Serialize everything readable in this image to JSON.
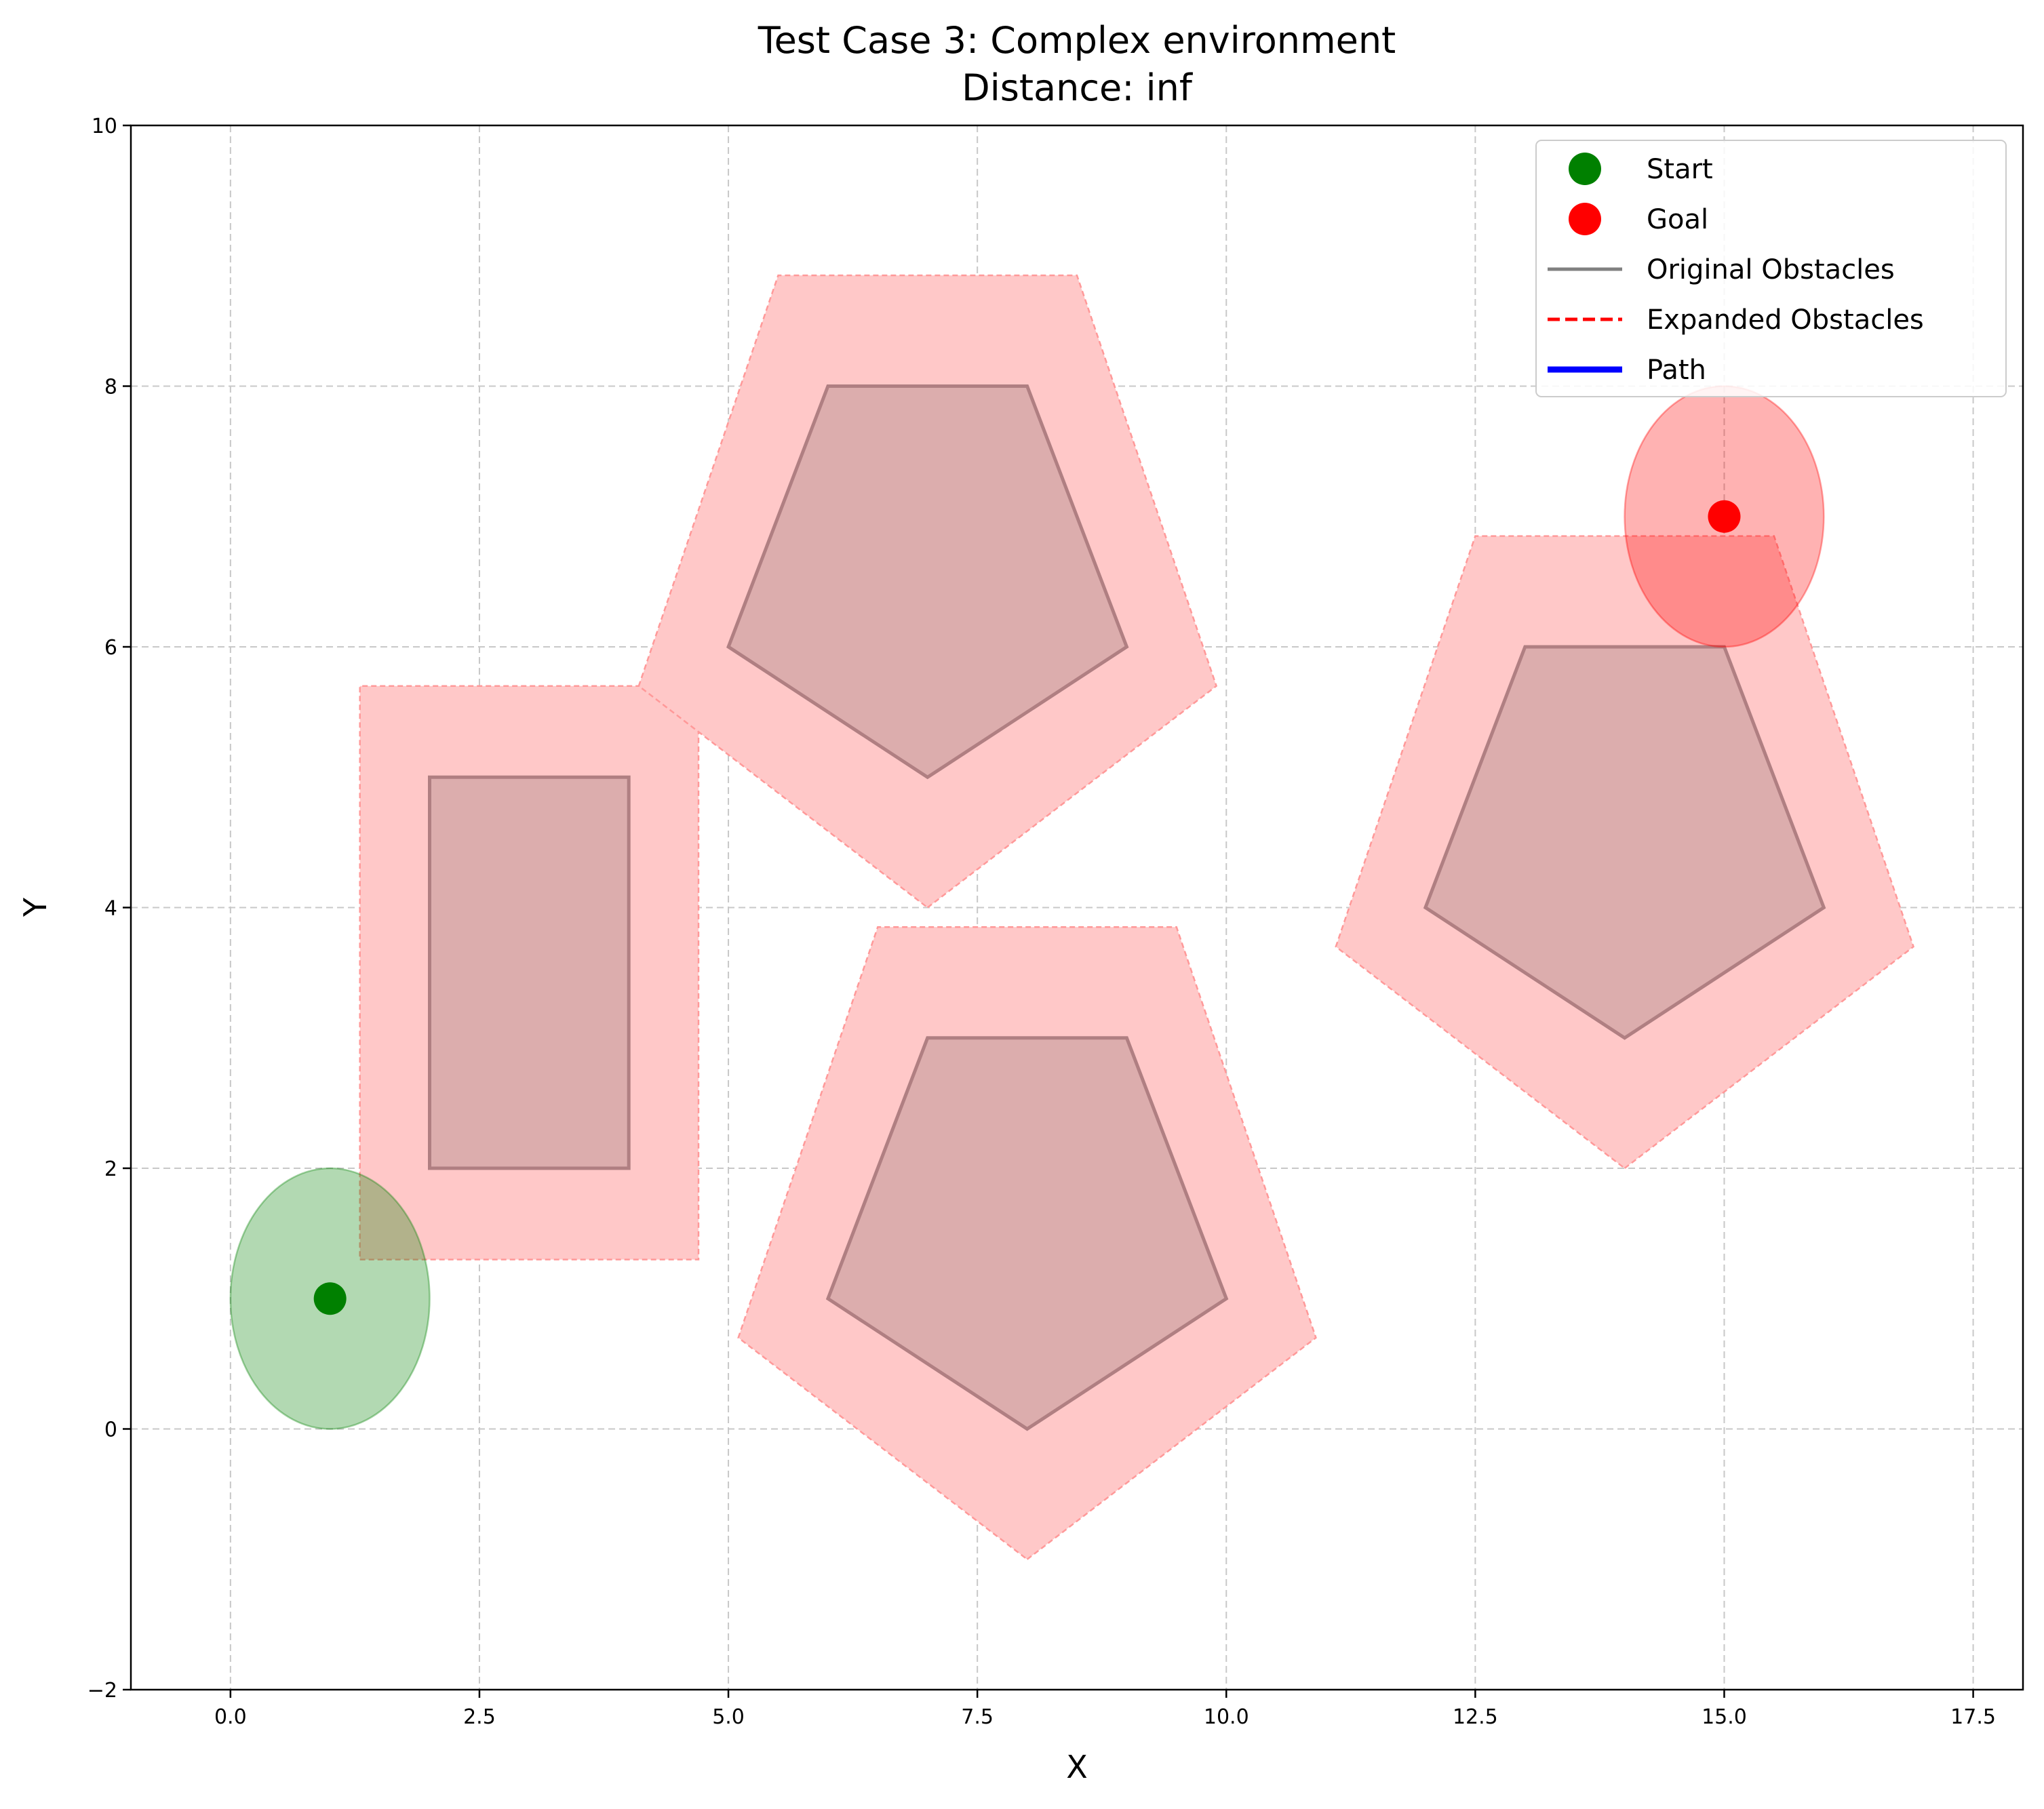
{
  "chart_data": {
    "type": "scatter",
    "title": "Test Case 3: Complex environment",
    "subtitle": "Distance: inf",
    "xlabel": "X",
    "ylabel": "Y",
    "xlim": [
      -1,
      18
    ],
    "ylim": [
      -2,
      10
    ],
    "x_ticks": [
      0.0,
      2.5,
      5.0,
      7.5,
      10.0,
      12.5,
      15.0,
      17.5
    ],
    "x_tick_labels": [
      "0.0",
      "2.5",
      "5.0",
      "7.5",
      "10.0",
      "12.5",
      "15.0",
      "17.5"
    ],
    "y_ticks": [
      -2,
      0,
      2,
      4,
      6,
      8,
      10
    ],
    "y_tick_labels": [
      "−2",
      "0",
      "2",
      "4",
      "6",
      "8",
      "10"
    ],
    "grid": true,
    "legend_position": "top-right",
    "legend": [
      {
        "label": "Start",
        "kind": "marker",
        "color": "#008000"
      },
      {
        "label": "Goal",
        "kind": "marker",
        "color": "#ff0000"
      },
      {
        "label": "Original Obstacles",
        "kind": "line",
        "color": "#808080"
      },
      {
        "label": "Expanded Obstacles",
        "kind": "dashed-line",
        "color": "#ff0000"
      },
      {
        "label": "Path",
        "kind": "thick-line",
        "color": "#0000ff"
      }
    ],
    "start": {
      "x": 1,
      "y": 1,
      "radius": 1,
      "color": "#008000"
    },
    "goal": {
      "x": 15,
      "y": 7,
      "radius": 1,
      "color": "#ff0000"
    },
    "original_obstacles": [
      [
        [
          2,
          2
        ],
        [
          4,
          2
        ],
        [
          4,
          5
        ],
        [
          2,
          5
        ]
      ],
      [
        [
          7,
          5
        ],
        [
          9,
          6
        ],
        [
          8,
          8
        ],
        [
          6,
          8
        ],
        [
          5,
          6
        ]
      ],
      [
        [
          8,
          0
        ],
        [
          10,
          1
        ],
        [
          9,
          3
        ],
        [
          7,
          3
        ],
        [
          6,
          1
        ]
      ],
      [
        [
          14,
          3
        ],
        [
          16,
          4
        ],
        [
          15,
          6
        ],
        [
          13,
          6
        ],
        [
          12,
          4
        ]
      ]
    ],
    "expanded_obstacles": [
      [
        [
          1.3,
          1.3
        ],
        [
          4.7,
          1.3
        ],
        [
          4.7,
          5.7
        ],
        [
          1.3,
          5.7
        ]
      ],
      [
        [
          7,
          4
        ],
        [
          9.9,
          5.7
        ],
        [
          8.5,
          8.85
        ],
        [
          5.5,
          8.85
        ],
        [
          4.1,
          5.7
        ]
      ],
      [
        [
          8,
          -1
        ],
        [
          10.9,
          0.7
        ],
        [
          9.5,
          3.85
        ],
        [
          6.5,
          3.85
        ],
        [
          5.1,
          0.7
        ]
      ],
      [
        [
          14,
          2
        ],
        [
          16.9,
          3.7
        ],
        [
          15.5,
          6.85
        ],
        [
          12.5,
          6.85
        ],
        [
          11.1,
          3.7
        ]
      ]
    ],
    "path": [],
    "colors": {
      "original_fill": "#dcadad",
      "original_edge": "#b07f82",
      "expanded_fill": "#ffc8c8",
      "expanded_edge": "#ff9999",
      "start_region": "#008000",
      "goal_region": "#ff0000",
      "grid": "#c8c8c8",
      "path": "#0000ff"
    }
  }
}
